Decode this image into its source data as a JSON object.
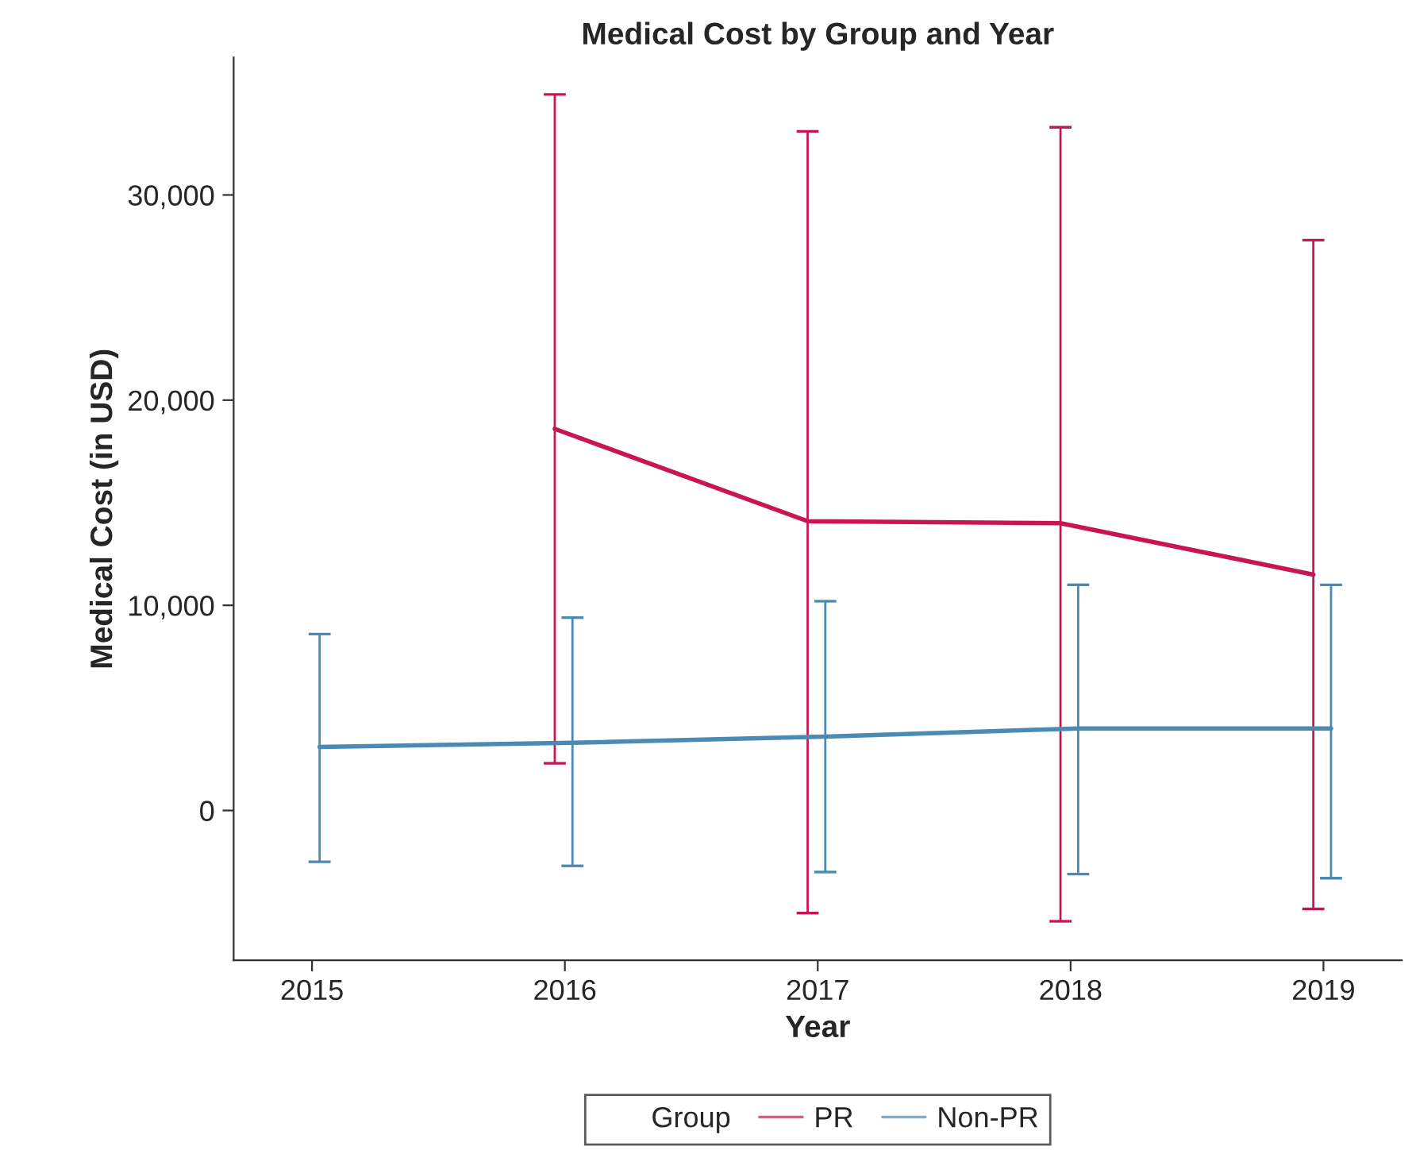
{
  "chart_data": {
    "type": "line",
    "title": "Medical Cost by Group and Year",
    "xlabel": "Year",
    "ylabel": "Medical Cost (in USD)",
    "legend_title": "Group",
    "legend": "bottom",
    "grid": false,
    "marker": "none",
    "line_style": "solid",
    "xlim": [
      2014.69,
      2019.31
    ],
    "xticks": [
      2015,
      2016,
      2017,
      2018,
      2019
    ],
    "ylim": [
      -7300,
      36700
    ],
    "yticks": [
      {
        "value": 0,
        "label": "0"
      },
      {
        "value": 10000,
        "label": "10,000"
      },
      {
        "value": 20000,
        "label": "20,000"
      },
      {
        "value": 30000,
        "label": "30,000"
      }
    ],
    "series": [
      {
        "name": "PR",
        "color": "#c8174f",
        "x": [
          2015.96,
          2016.96,
          2017.96,
          2018.96
        ],
        "values": [
          18600,
          14100,
          14000,
          11500
        ],
        "errors": [
          [
            2300,
            34900
          ],
          [
            -5000,
            33100
          ],
          [
            -5400,
            33300
          ],
          [
            -4800,
            27800
          ]
        ]
      },
      {
        "name": "Non-PR",
        "color": "#4a8ab5",
        "x": [
          2015.03,
          2016.03,
          2017.03,
          2018.03,
          2019.03
        ],
        "values": [
          3100,
          3300,
          3600,
          4000,
          4000
        ],
        "errors": [
          [
            -2500,
            8600
          ],
          [
            -2700,
            9400
          ],
          [
            -3000,
            10200
          ],
          [
            -3100,
            11000
          ],
          [
            -3300,
            11000
          ]
        ]
      }
    ]
  }
}
